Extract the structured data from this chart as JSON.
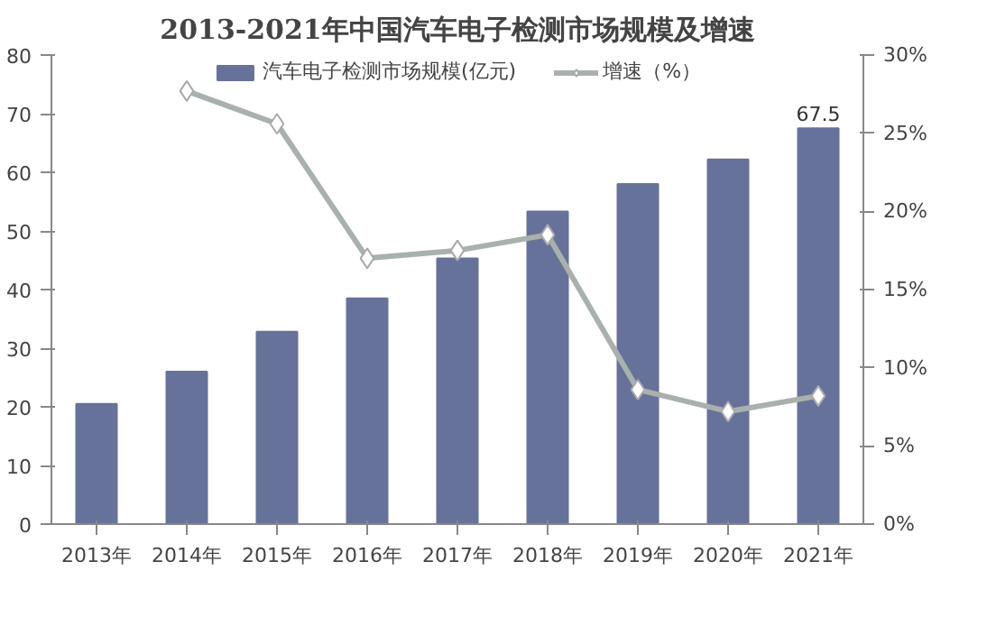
{
  "chart_data": {
    "type": "bar",
    "title": "2013-2021年中国汽车电子检测市场规模及增速",
    "categories": [
      "2013年",
      "2014年",
      "2015年",
      "2016年",
      "2017年",
      "2018年",
      "2019年",
      "2020年",
      "2021年"
    ],
    "series": [
      {
        "name": "汽车电子检测市场规模(亿元)",
        "color": "#67729a",
        "values": [
          20.5,
          26,
          32.8,
          38.5,
          45.3,
          53.3,
          58,
          62.2,
          67.5
        ],
        "value_labels": [
          null,
          null,
          null,
          null,
          null,
          null,
          null,
          null,
          "67.5"
        ]
      },
      {
        "name": "增速（%）",
        "type": "line",
        "axis": "y2",
        "color": "#a9b1ad",
        "marker": "diamond",
        "values": [
          null,
          27.7,
          25.6,
          17.0,
          17.5,
          18.5,
          8.6,
          7.2,
          8.2
        ]
      }
    ],
    "ylim": [
      0,
      80
    ],
    "yticks": [
      0,
      10,
      20,
      30,
      40,
      50,
      60,
      70,
      80
    ],
    "y2lim": [
      0,
      30
    ],
    "y2ticks": [
      {
        "value": 0,
        "label": "0%"
      },
      {
        "value": 5,
        "label": "5%"
      },
      {
        "value": 10,
        "label": "10%"
      },
      {
        "value": 15,
        "label": "15%"
      },
      {
        "value": 20,
        "label": "20%"
      },
      {
        "value": 25,
        "label": "25%"
      },
      {
        "value": 30,
        "label": "30%"
      }
    ],
    "grid": false,
    "legend": "top"
  }
}
